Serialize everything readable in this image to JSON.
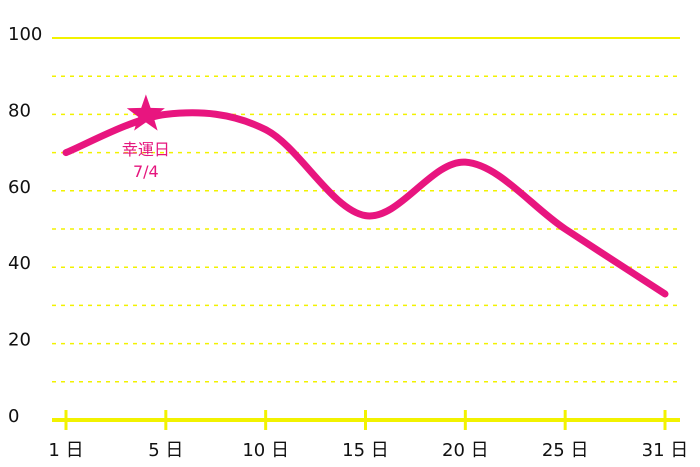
{
  "chart_data": {
    "type": "line",
    "x": [
      1,
      5,
      10,
      15,
      20,
      25,
      31
    ],
    "series": [
      {
        "color": "#e8157f",
        "values": [
          70,
          80,
          76,
          53.5,
          67.5,
          50,
          33
        ]
      }
    ],
    "xlim": [
      1,
      31
    ],
    "xticks": [
      {
        "value": 1,
        "label": "1 日"
      },
      {
        "value": 5,
        "label": "5 日"
      },
      {
        "value": 10,
        "label": "10 日"
      },
      {
        "value": 15,
        "label": "15 日"
      },
      {
        "value": 20,
        "label": "20 日"
      },
      {
        "value": 25,
        "label": "25 日"
      },
      {
        "value": 31,
        "label": "31 日"
      }
    ],
    "ylim": [
      0,
      100
    ],
    "yticks": [
      0,
      20,
      40,
      60,
      80,
      100
    ],
    "minor_yticks": [
      10,
      30,
      50,
      70,
      90
    ],
    "grid": true,
    "grid_color": "#f2f200",
    "highlight": {
      "x": 4.2,
      "value": 80,
      "label": "幸運日",
      "date": "7/4"
    }
  }
}
